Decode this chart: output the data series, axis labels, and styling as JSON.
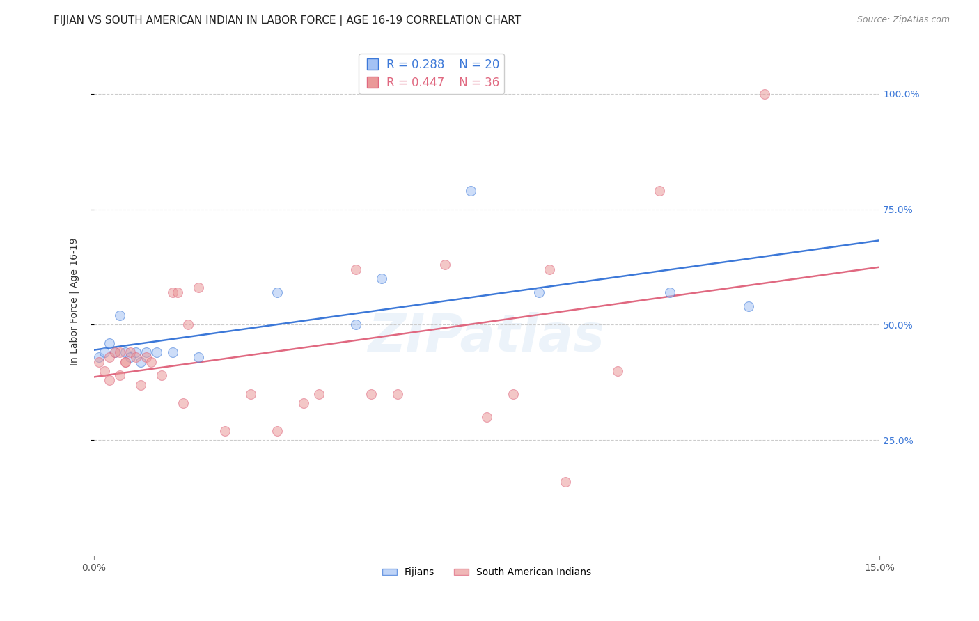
{
  "title": "FIJIAN VS SOUTH AMERICAN INDIAN IN LABOR FORCE | AGE 16-19 CORRELATION CHART",
  "source": "Source: ZipAtlas.com",
  "ylabel": "In Labor Force | Age 16-19",
  "xlim": [
    0.0,
    0.15
  ],
  "ylim": [
    0.0,
    1.1
  ],
  "fijian_color": "#a4c2f4",
  "south_american_color": "#ea9999",
  "fijian_line_color": "#3c78d8",
  "south_american_line_color": "#e06880",
  "legend_r_fijian": "R = 0.288",
  "legend_n_fijian": "N = 20",
  "legend_r_south": "R = 0.447",
  "legend_n_south": "N = 36",
  "watermark": "ZIPatlas",
  "fijian_x": [
    0.001,
    0.002,
    0.003,
    0.004,
    0.005,
    0.006,
    0.007,
    0.008,
    0.009,
    0.01,
    0.012,
    0.015,
    0.02,
    0.035,
    0.05,
    0.055,
    0.072,
    0.085,
    0.11,
    0.125
  ],
  "fijian_y": [
    0.43,
    0.44,
    0.46,
    0.44,
    0.52,
    0.44,
    0.43,
    0.44,
    0.42,
    0.44,
    0.44,
    0.44,
    0.43,
    0.57,
    0.5,
    0.6,
    0.79,
    0.57,
    0.57,
    0.54
  ],
  "south_american_x": [
    0.001,
    0.002,
    0.003,
    0.003,
    0.004,
    0.005,
    0.005,
    0.006,
    0.006,
    0.007,
    0.008,
    0.009,
    0.01,
    0.011,
    0.013,
    0.015,
    0.016,
    0.017,
    0.018,
    0.02,
    0.025,
    0.03,
    0.035,
    0.04,
    0.043,
    0.05,
    0.053,
    0.058,
    0.067,
    0.075,
    0.08,
    0.087,
    0.09,
    0.1,
    0.108,
    0.128
  ],
  "south_american_y": [
    0.42,
    0.4,
    0.43,
    0.38,
    0.44,
    0.39,
    0.44,
    0.42,
    0.42,
    0.44,
    0.43,
    0.37,
    0.43,
    0.42,
    0.39,
    0.57,
    0.57,
    0.33,
    0.5,
    0.58,
    0.27,
    0.35,
    0.27,
    0.33,
    0.35,
    0.62,
    0.35,
    0.35,
    0.63,
    0.3,
    0.35,
    0.62,
    0.16,
    0.4,
    0.79,
    1.0
  ],
  "ytick_values": [
    0.25,
    0.5,
    0.75,
    1.0
  ],
  "ytick_labels": [
    "25.0%",
    "50.0%",
    "75.0%",
    "100.0%"
  ],
  "xtick_values": [
    0.0,
    0.15
  ],
  "xtick_labels": [
    "0.0%",
    "15.0%"
  ],
  "title_fontsize": 11,
  "source_fontsize": 9,
  "axis_label_fontsize": 10,
  "tick_fontsize": 10,
  "marker_size": 100,
  "marker_alpha": 0.55,
  "watermark_alpha": 0.13
}
